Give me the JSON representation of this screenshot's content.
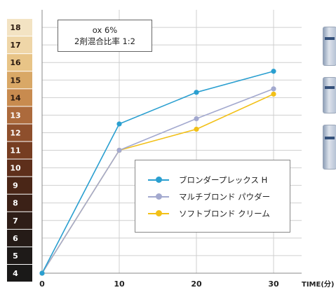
{
  "annotation": {
    "line1": "ox 6%",
    "line2": "2剤混合比率 1:2"
  },
  "chart_data": {
    "type": "line",
    "x": [
      0,
      10,
      20,
      30
    ],
    "x_ticks": [
      "0",
      "10",
      "20",
      "30"
    ],
    "x_unit_label": "TIME(分)",
    "ylim": [
      4,
      18
    ],
    "y_levels": [
      {
        "label": "18",
        "color": "#f3e3c3"
      },
      {
        "label": "17",
        "color": "#efd6a8"
      },
      {
        "label": "16",
        "color": "#e8c487"
      },
      {
        "label": "15",
        "color": "#d9a866"
      },
      {
        "label": "14",
        "color": "#c88b4f"
      },
      {
        "label": "13",
        "color": "#ac6a3c"
      },
      {
        "label": "12",
        "color": "#8e4f2c"
      },
      {
        "label": "11",
        "color": "#763d21"
      },
      {
        "label": "10",
        "color": "#5e2f1b"
      },
      {
        "label": "9",
        "color": "#4a2617"
      },
      {
        "label": "8",
        "color": "#3b2117"
      },
      {
        "label": "7",
        "color": "#2e1d17"
      },
      {
        "label": "6",
        "color": "#251b17"
      },
      {
        "label": "5",
        "color": "#1e1a18"
      },
      {
        "label": "4",
        "color": "#1a1918"
      }
    ],
    "series": [
      {
        "name": "ブロンダープレックス H",
        "color": "#2a9fd0",
        "values": [
          4,
          12.5,
          14.3,
          15.5
        ]
      },
      {
        "name": "マルチブロンド パウダー",
        "color": "#a3a9cf",
        "values": [
          4,
          11,
          12.8,
          14.5
        ]
      },
      {
        "name": "ソフトブロンド クリーム",
        "color": "#f2c017",
        "values": [
          4,
          11,
          12.2,
          14.2
        ]
      }
    ],
    "grid": true,
    "legend_position": "center-right"
  }
}
